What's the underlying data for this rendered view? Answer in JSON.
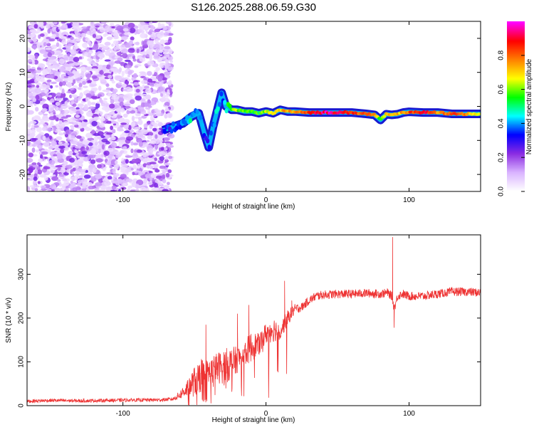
{
  "figure": {
    "title": "S126.2025.288.06.59.G30"
  },
  "chart_data": [
    {
      "type": "heatmap",
      "name": "spectrogram",
      "xlabel": "Height of straight line (km)",
      "ylabel": "Frequency (Hz)",
      "xlim": [
        -167,
        150
      ],
      "ylim": [
        -25,
        25
      ],
      "xticks": [
        -100,
        0,
        100
      ],
      "yticks": [
        -20,
        -10,
        0,
        10,
        20
      ],
      "colorbar": {
        "label": "Normalized spectral amplitude",
        "range": [
          0,
          1
        ],
        "ticks": [
          0.0,
          0.2,
          0.4,
          0.6,
          0.8
        ],
        "colors": [
          "#ffffff",
          "#d9b3ff",
          "#8a2be2",
          "#0000ff",
          "#00ffff",
          "#00ff00",
          "#ffff00",
          "#ff8000",
          "#ff0000",
          "#ff00ff"
        ]
      },
      "noise_region": {
        "x_start": -167,
        "x_end": -70,
        "amplitude": [
          0.05,
          0.25
        ]
      },
      "trace": {
        "x": [
          -72,
          -65,
          -58,
          -52,
          -47,
          -43,
          -40,
          -37,
          -34,
          -31,
          -28,
          -24,
          -20,
          -15,
          -10,
          -5,
          0,
          5,
          10,
          15,
          20,
          30,
          40,
          50,
          60,
          70,
          76,
          80,
          84,
          88,
          92,
          96,
          100,
          110,
          120,
          130,
          140,
          150
        ],
        "y": [
          -7,
          -6,
          -5,
          -3,
          -2,
          -8,
          -12,
          -6,
          -1,
          4,
          0,
          -1,
          -1,
          -1.5,
          -1.5,
          -2,
          -1.5,
          -2,
          -1,
          -1.5,
          -1.5,
          -1.8,
          -1.8,
          -1.8,
          -1.8,
          -2.2,
          -2.5,
          -4,
          -2.3,
          -2.5,
          -2.3,
          -1.8,
          -1.6,
          -1.8,
          -1.8,
          -2.2,
          -2.2,
          -2.2
        ],
        "amp": [
          0.3,
          0.35,
          0.4,
          0.45,
          0.4,
          0.35,
          0.3,
          0.35,
          0.45,
          0.3,
          0.5,
          0.6,
          0.6,
          0.55,
          0.6,
          0.55,
          0.65,
          0.7,
          0.7,
          0.75,
          0.75,
          0.85,
          0.95,
          0.92,
          0.85,
          0.8,
          0.8,
          0.5,
          0.75,
          0.75,
          0.7,
          0.75,
          0.8,
          0.9,
          0.75,
          0.85,
          0.75,
          0.65
        ]
      }
    },
    {
      "type": "line",
      "name": "snr",
      "xlabel": "Height of straight line (km)",
      "ylabel": "SNR (10 * v/v)",
      "xlim": [
        -167,
        150
      ],
      "ylim": [
        0,
        390
      ],
      "xticks": [
        -100,
        0,
        100
      ],
      "yticks": [
        0,
        100,
        200,
        300
      ],
      "color": "#ee3333",
      "series": [
        {
          "name": "SNR",
          "x": [
            -167,
            -150,
            -130,
            -110,
            -90,
            -75,
            -65,
            -60,
            -55,
            -50,
            -45,
            -40,
            -35,
            -30,
            -25,
            -20,
            -15,
            -10,
            -5,
            0,
            5,
            10,
            15,
            20,
            25,
            30,
            35,
            40,
            50,
            60,
            70,
            80,
            85,
            88,
            89,
            90,
            92,
            95,
            100,
            110,
            120,
            130,
            140,
            150
          ],
          "y": [
            10,
            12,
            11,
            12,
            13,
            13,
            15,
            25,
            40,
            55,
            70,
            75,
            85,
            90,
            95,
            105,
            120,
            135,
            140,
            165,
            175,
            170,
            200,
            220,
            225,
            240,
            250,
            253,
            255,
            255,
            257,
            255,
            258,
            250,
            230,
            225,
            250,
            255,
            250,
            250,
            255,
            260,
            260,
            258
          ],
          "noise": [
            4,
            4,
            4,
            4,
            4,
            4,
            4,
            10,
            20,
            35,
            40,
            30,
            35,
            40,
            40,
            30,
            30,
            35,
            25,
            25,
            30,
            20,
            18,
            12,
            10,
            10,
            10,
            10,
            10,
            10,
            10,
            10,
            10,
            10,
            10,
            10,
            10,
            10,
            10,
            10,
            10,
            10,
            10,
            10
          ]
        }
      ],
      "spikes": [
        {
          "x": -42,
          "y": 185
        },
        {
          "x": -20,
          "y": 210
        },
        {
          "x": -12,
          "y": 230
        },
        {
          "x": 13,
          "y": 285
        },
        {
          "x": 18,
          "y": 240
        },
        {
          "x": 88.5,
          "y": 385
        },
        {
          "x": 89.5,
          "y": 178
        }
      ]
    }
  ]
}
